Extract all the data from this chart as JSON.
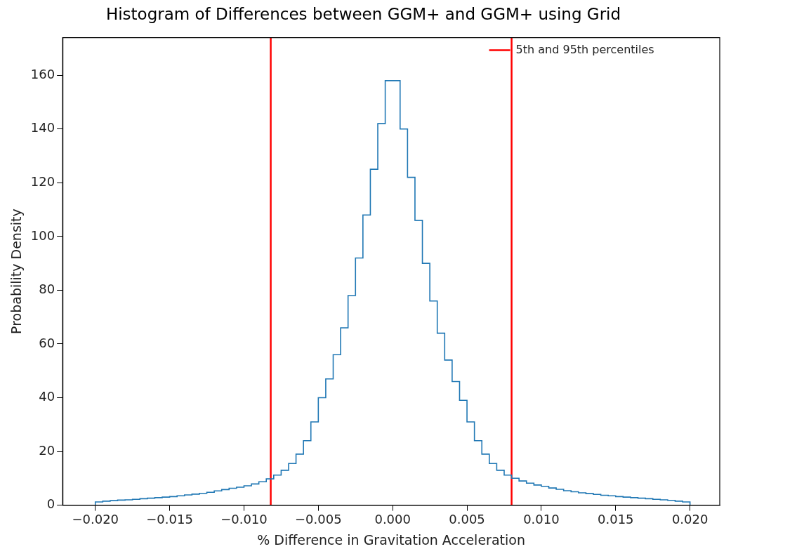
{
  "chart_data": {
    "type": "histogram",
    "title": "Histogram of Differences between GGM+ and GGM+ using Grid",
    "xlabel": "% Difference in Gravitation Acceleration",
    "ylabel": "Probability Density",
    "bins": [
      -0.02,
      -0.0195,
      -0.019,
      -0.0185,
      -0.018,
      -0.0175,
      -0.017,
      -0.0165,
      -0.016,
      -0.0155,
      -0.015,
      -0.0145,
      -0.014,
      -0.0135,
      -0.013,
      -0.0125,
      -0.012,
      -0.0115,
      -0.011,
      -0.0105,
      -0.01,
      -0.0095,
      -0.009,
      -0.0085,
      -0.008,
      -0.0075,
      -0.007,
      -0.0065,
      -0.006,
      -0.0055,
      -0.005,
      -0.0045,
      -0.004,
      -0.0035,
      -0.003,
      -0.0025,
      -0.002,
      -0.0015,
      -0.001,
      -0.0005,
      0,
      0.0005,
      0.001,
      0.0015,
      0.002,
      0.0025,
      0.003,
      0.0035,
      0.004,
      0.0045,
      0.005,
      0.0055,
      0.006,
      0.0065,
      0.007,
      0.0075,
      0.008,
      0.0085,
      0.009,
      0.0095,
      0.01,
      0.0105,
      0.011,
      0.0115,
      0.012,
      0.0125,
      0.013,
      0.0135,
      0.014,
      0.0145,
      0.015,
      0.0155,
      0.016,
      0.0165,
      0.017,
      0.0175,
      0.018,
      0.0185,
      0.019,
      0.0195,
      0.02
    ],
    "values": [
      1.2,
      1.5,
      1.7,
      1.9,
      2.0,
      2.2,
      2.4,
      2.6,
      2.8,
      3.0,
      3.2,
      3.5,
      3.8,
      4.1,
      4.4,
      4.8,
      5.3,
      5.8,
      6.3,
      6.7,
      7.2,
      7.9,
      8.7,
      9.8,
      11.2,
      13,
      15.5,
      19,
      24,
      31,
      40,
      47,
      56,
      66,
      78,
      92,
      108,
      125,
      142,
      158,
      158,
      140,
      122,
      106,
      90,
      76,
      64,
      54,
      46,
      39,
      31,
      24,
      19,
      15.5,
      13,
      11.2,
      10,
      9,
      8.2,
      7.5,
      7,
      6.4,
      5.9,
      5.4,
      5,
      4.6,
      4.3,
      4,
      3.7,
      3.5,
      3.2,
      3,
      2.8,
      2.6,
      2.4,
      2.2,
      2,
      1.8,
      1.5,
      1.2
    ],
    "color": "#1f77b4",
    "xlim": [
      -0.0222,
      0.022
    ],
    "ylim": [
      0,
      174
    ],
    "xticks": [
      {
        "value": -0.02,
        "label": "−0.020"
      },
      {
        "value": -0.015,
        "label": "−0.015"
      },
      {
        "value": -0.01,
        "label": "−0.010"
      },
      {
        "value": -0.005,
        "label": "−0.005"
      },
      {
        "value": 0,
        "label": "0.000"
      },
      {
        "value": 0.005,
        "label": "0.005"
      },
      {
        "value": 0.01,
        "label": "0.010"
      },
      {
        "value": 0.015,
        "label": "0.015"
      },
      {
        "value": 0.02,
        "label": "0.020"
      }
    ],
    "yticks": [
      0,
      20,
      40,
      60,
      80,
      100,
      120,
      140,
      160
    ],
    "ref_lines": [
      {
        "axis": "x",
        "value": -0.0082,
        "color": "#ff0000"
      },
      {
        "axis": "x",
        "value": 0.008,
        "label": "5th and 95th percentiles",
        "color": "#ff0000"
      }
    ],
    "grid": false,
    "legend": "top right"
  }
}
